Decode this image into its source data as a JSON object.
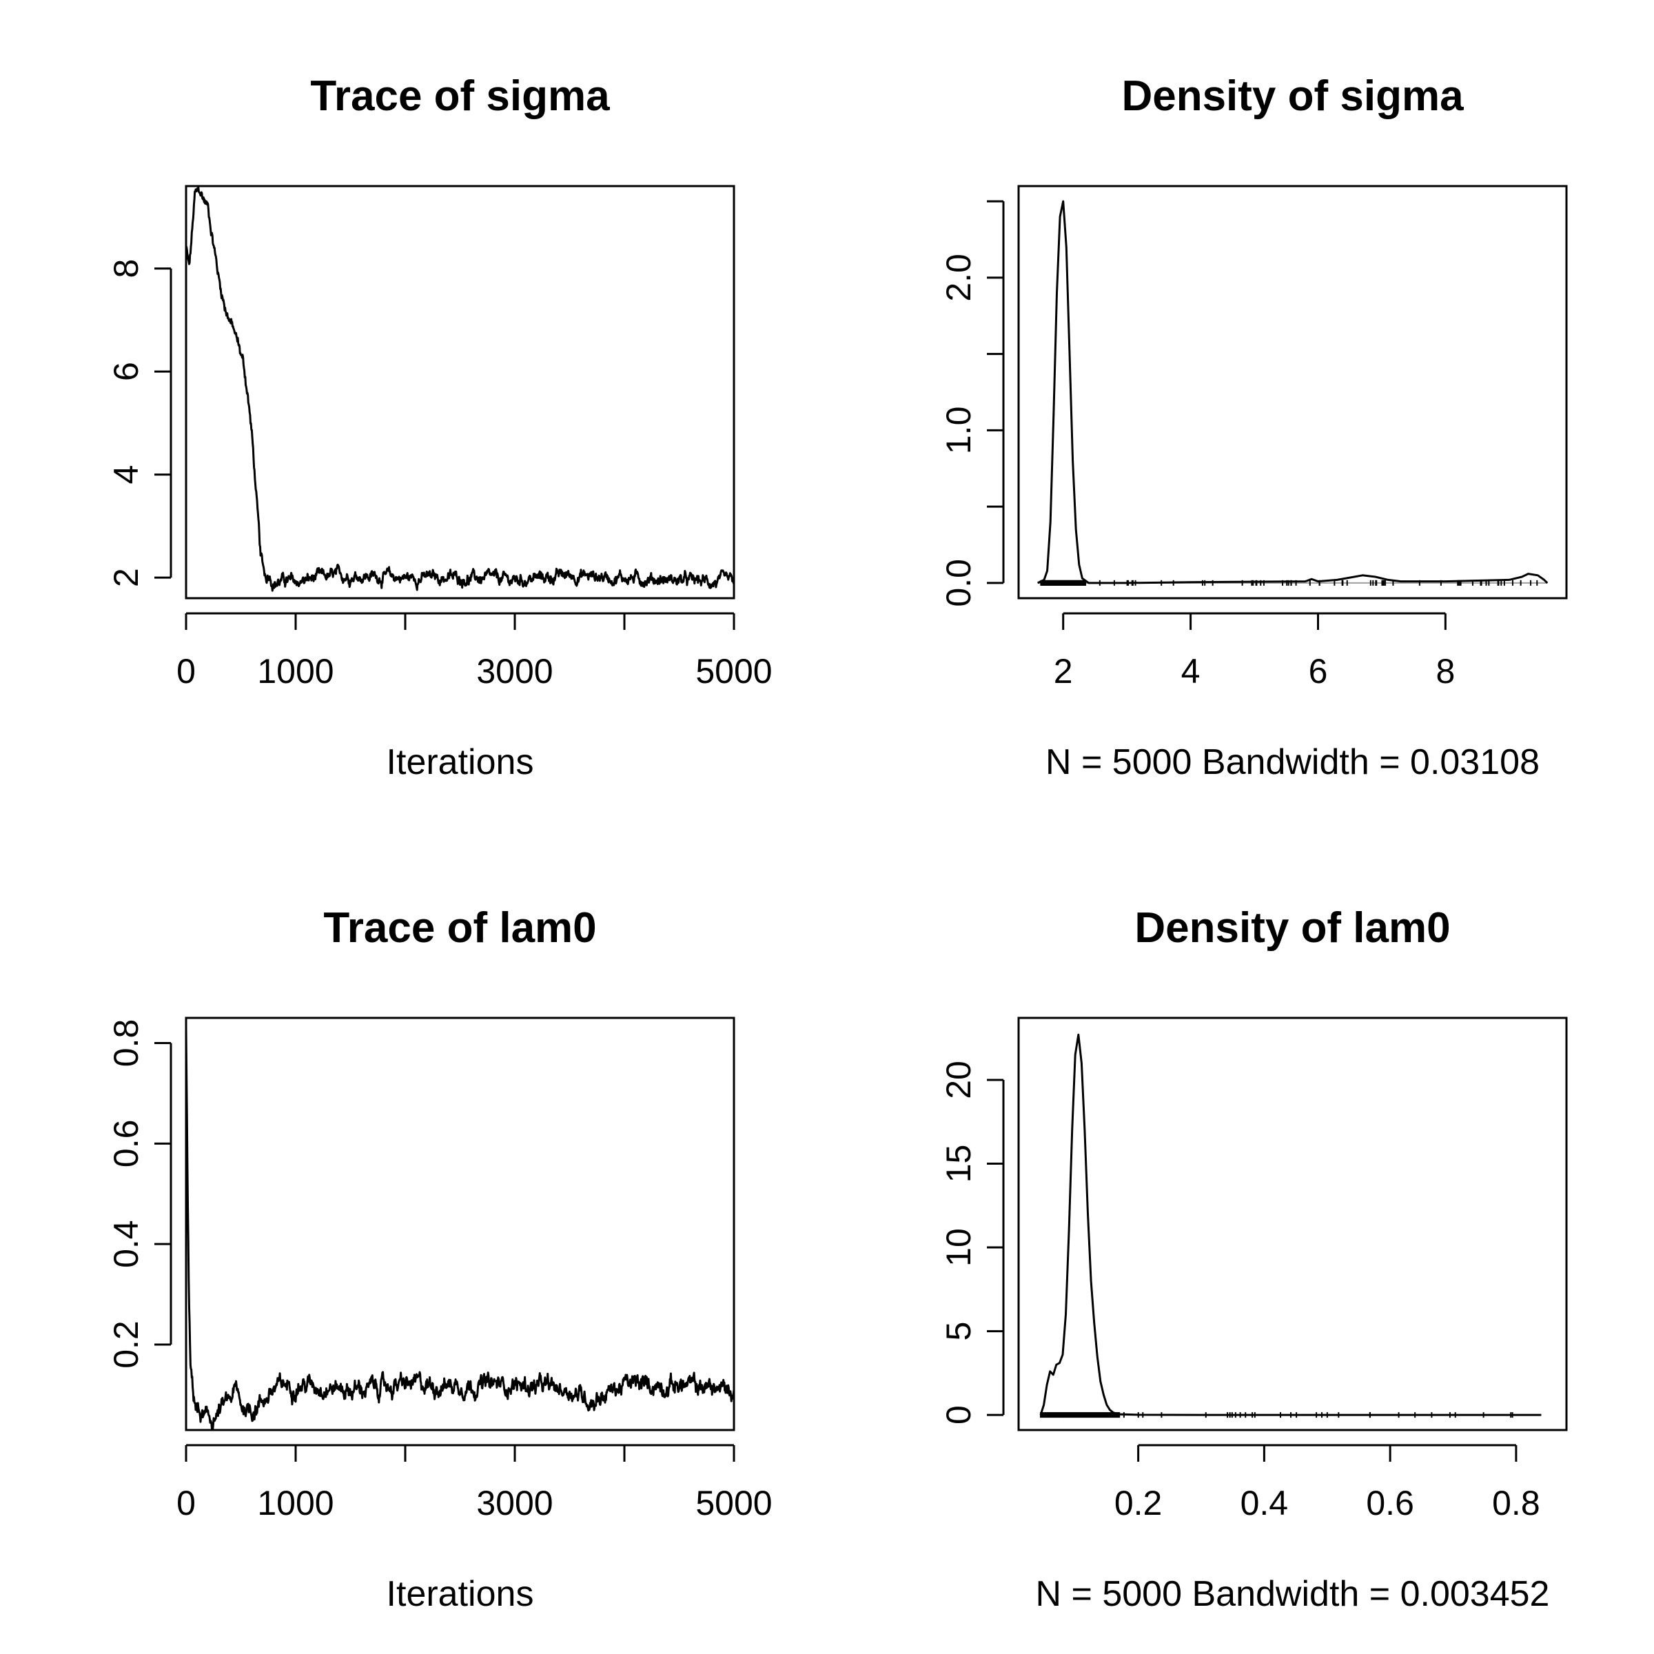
{
  "chart_data": [
    {
      "id": "trace-sigma",
      "type": "line",
      "title": "Trace of sigma",
      "xlabel": "Iterations",
      "ylabel": "",
      "xlim": [
        0,
        5000
      ],
      "ylim": [
        1.6,
        9.6
      ],
      "xticks": [
        0,
        1000,
        2000,
        3000,
        4000,
        5000
      ],
      "xticklabels": [
        "0",
        "1000",
        "",
        "3000",
        "",
        "5000"
      ],
      "yticks": [
        2,
        4,
        6,
        8
      ],
      "yticklabels": [
        "2",
        "4",
        "6",
        "8"
      ],
      "grid": false,
      "series": [
        {
          "x": [
            0,
            30,
            80,
            120,
            200,
            250,
            300,
            350,
            400,
            450,
            480,
            520,
            560,
            600,
            640,
            680,
            700,
            730,
            760,
            800,
            900,
            1000,
            1200,
            1500,
            2000,
            2500,
            3000,
            3500,
            4000,
            4500,
            5000
          ],
          "y": [
            8.4,
            8.0,
            9.4,
            9.5,
            9.2,
            8.5,
            7.8,
            7.3,
            7.0,
            6.7,
            6.5,
            6.2,
            5.6,
            4.8,
            3.6,
            2.4,
            2.2,
            2.0,
            2.1,
            1.9,
            1.95,
            1.9,
            2.0,
            2.05,
            2.0,
            2.0,
            1.95,
            2.05,
            2.0,
            1.95,
            1.9
          ],
          "noise": 0.08
        }
      ]
    },
    {
      "id": "density-sigma",
      "type": "line",
      "title": "Density of sigma",
      "xlabel": "N = 5000   Bandwidth = 0.03108",
      "ylabel": "",
      "xlim": [
        1.3,
        9.9
      ],
      "ylim": [
        -0.1,
        2.6
      ],
      "xticks": [
        2,
        4,
        6,
        8
      ],
      "xticklabels": [
        "2",
        "4",
        "6",
        "8"
      ],
      "yticks": [
        0.0,
        0.5,
        1.0,
        1.5,
        2.0,
        2.5
      ],
      "yticklabels": [
        "0.0",
        "",
        "1.0",
        "",
        "2.0",
        ""
      ],
      "grid": false,
      "series": [
        {
          "x": [
            1.6,
            1.7,
            1.75,
            1.8,
            1.85,
            1.9,
            1.95,
            2.0,
            2.05,
            2.1,
            2.15,
            2.2,
            2.25,
            2.3,
            2.4,
            3.0,
            4.0,
            5.0,
            5.8,
            5.9,
            6.0,
            6.3,
            6.5,
            6.7,
            6.9,
            7.1,
            7.3,
            8.0,
            8.5,
            9.0,
            9.2,
            9.3,
            9.45,
            9.55,
            9.6
          ],
          "y": [
            0.0,
            0.02,
            0.08,
            0.4,
            1.1,
            1.9,
            2.4,
            2.5,
            2.2,
            1.5,
            0.8,
            0.35,
            0.12,
            0.03,
            0.0,
            0.0,
            0.005,
            0.008,
            0.01,
            0.025,
            0.01,
            0.02,
            0.035,
            0.05,
            0.04,
            0.02,
            0.01,
            0.01,
            0.015,
            0.02,
            0.04,
            0.06,
            0.05,
            0.02,
            0.0
          ]
        }
      ],
      "rug": {
        "dense": [
          1.65,
          2.35
        ],
        "sparse_from": 2.35,
        "sparse_to": 9.6,
        "count": 60
      }
    },
    {
      "id": "trace-lam0",
      "type": "line",
      "title": "Trace of lam0",
      "xlabel": "Iterations",
      "ylabel": "",
      "xlim": [
        0,
        5000
      ],
      "ylim": [
        0.03,
        0.85
      ],
      "xticks": [
        0,
        1000,
        2000,
        3000,
        4000,
        5000
      ],
      "xticklabels": [
        "0",
        "1000",
        "",
        "3000",
        "",
        "5000"
      ],
      "yticks": [
        0.2,
        0.4,
        0.6,
        0.8
      ],
      "yticklabels": [
        "0.2",
        "0.4",
        "0.6",
        "0.8"
      ],
      "grid": false,
      "series": [
        {
          "x": [
            0,
            10,
            25,
            40,
            60,
            80,
            100,
            130,
            180,
            250,
            320,
            400,
            450,
            500,
            600,
            700,
            800,
            900,
            1000,
            1200,
            1500,
            2000,
            2500,
            3000,
            3500,
            3700,
            4000,
            4500,
            5000
          ],
          "y": [
            0.83,
            0.6,
            0.3,
            0.15,
            0.11,
            0.09,
            0.07,
            0.06,
            0.05,
            0.05,
            0.07,
            0.09,
            0.11,
            0.08,
            0.07,
            0.09,
            0.11,
            0.12,
            0.12,
            0.12,
            0.11,
            0.12,
            0.12,
            0.12,
            0.11,
            0.09,
            0.12,
            0.12,
            0.11
          ],
          "noise": 0.012
        }
      ]
    },
    {
      "id": "density-lam0",
      "type": "line",
      "title": "Density of lam0",
      "xlabel": "N = 5000   Bandwidth = 0.003452",
      "ylabel": "",
      "xlim": [
        0.01,
        0.88
      ],
      "ylim": [
        -0.9,
        23.7
      ],
      "xticks": [
        0.2,
        0.4,
        0.6,
        0.8
      ],
      "xticklabels": [
        "0.2",
        "0.4",
        "0.6",
        "0.8"
      ],
      "yticks": [
        0,
        5,
        10,
        15,
        20
      ],
      "yticklabels": [
        "0",
        "5",
        "10",
        "15",
        "20"
      ],
      "grid": false,
      "series": [
        {
          "x": [
            0.045,
            0.05,
            0.055,
            0.06,
            0.065,
            0.07,
            0.075,
            0.08,
            0.085,
            0.09,
            0.095,
            0.1,
            0.105,
            0.11,
            0.115,
            0.12,
            0.125,
            0.13,
            0.135,
            0.14,
            0.145,
            0.15,
            0.155,
            0.16,
            0.165,
            0.17,
            0.2,
            0.3,
            0.5,
            0.7,
            0.84
          ],
          "y": [
            0.0,
            0.6,
            1.8,
            2.6,
            2.4,
            3.0,
            3.1,
            3.6,
            6.0,
            11.0,
            17.0,
            21.5,
            22.7,
            21.0,
            17.0,
            12.0,
            8.0,
            5.5,
            3.5,
            2.0,
            1.2,
            0.6,
            0.3,
            0.15,
            0.08,
            0.04,
            0.01,
            0.0,
            0.0,
            0.0,
            0.0
          ]
        }
      ],
      "rug": {
        "dense": [
          0.045,
          0.17
        ],
        "sparse_from": 0.17,
        "sparse_to": 0.84,
        "count": 30
      }
    }
  ]
}
